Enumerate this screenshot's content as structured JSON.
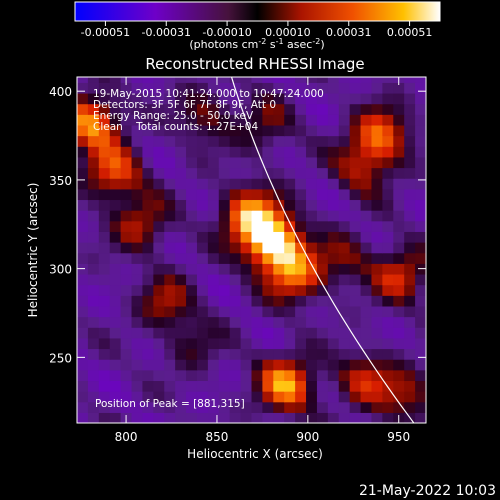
{
  "colorbar": {
    "ticks": [
      "-0.00051",
      "-0.00031",
      "-0.00010",
      "0.00010",
      "0.00031",
      "0.00051"
    ],
    "unit_label": "(photons cm",
    "unit_sup1": "-2",
    "unit_mid1": " s",
    "unit_sup2": "-1",
    "unit_mid2": " asec",
    "unit_sup3": "-2",
    "unit_end": ")"
  },
  "chart_data": {
    "type": "heatmap",
    "title": "Reconstructed RHESSI Image",
    "xlabel": "Heliocentric X (arcsec)",
    "ylabel": "Heliocentric Y (arcsec)",
    "xlim": [
      773,
      965
    ],
    "ylim": [
      213,
      408
    ],
    "x_ticks": [
      800,
      850,
      900,
      950
    ],
    "y_ticks": [
      250,
      300,
      350,
      400
    ],
    "color_range": [
      -0.00051,
      0.00051
    ],
    "limb_color": "#ffffff",
    "annotations": {
      "time_range": "19-May-2015 10:41:24.000 to 10:47:24.000",
      "detectors": "Detectors: 3F 5F 6F 7F 8F 9F, Att 0",
      "energy": "Energy Range: 25.0 - 50.0 keV",
      "clean": "Clean    Total counts: 1.27E+04",
      "peak": "Position of Peak = [881,315]"
    },
    "peak": [
      881,
      315
    ],
    "sources": [
      {
        "x": 881,
        "y": 315,
        "intensity": 0.00051
      },
      {
        "x": 868,
        "y": 330,
        "intensity": 0.0004
      },
      {
        "x": 893,
        "y": 297,
        "intensity": 0.00033
      },
      {
        "x": 888,
        "y": 235,
        "intensity": 0.0004
      },
      {
        "x": 781,
        "y": 383,
        "intensity": 0.0004
      },
      {
        "x": 793,
        "y": 354,
        "intensity": 0.00031
      },
      {
        "x": 808,
        "y": 325,
        "intensity": 0.00022
      },
      {
        "x": 822,
        "y": 281,
        "intensity": 0.0002
      },
      {
        "x": 940,
        "y": 375,
        "intensity": 0.00033
      },
      {
        "x": 930,
        "y": 357,
        "intensity": 0.0002
      },
      {
        "x": 951,
        "y": 297,
        "intensity": 0.00026
      },
      {
        "x": 931,
        "y": 238,
        "intensity": 0.00024
      },
      {
        "x": 955,
        "y": 228,
        "intensity": 0.0002
      },
      {
        "x": 843,
        "y": 387,
        "intensity": 0.00018
      },
      {
        "x": 876,
        "y": 380,
        "intensity": 0.00016
      },
      {
        "x": 920,
        "y": 305,
        "intensity": 0.00015
      },
      {
        "x": 837,
        "y": 257,
        "intensity": 0.00012
      }
    ]
  },
  "footer": {
    "timestamp": "21-May-2022 10:03"
  }
}
